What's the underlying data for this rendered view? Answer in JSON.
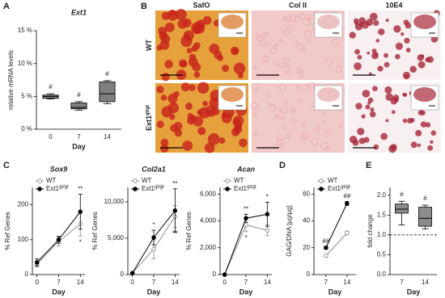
{
  "chart_data": [
    {
      "type": "box",
      "panel_label": "A",
      "title": "Ext1",
      "y_label": "relative mRNA levels",
      "x_label": "Day",
      "categories": [
        "0",
        "7",
        "14"
      ],
      "boxes": [
        {
          "min": 4.6,
          "q1": 4.7,
          "median": 5.0,
          "q3": 5.2,
          "max": 5.4
        },
        {
          "min": 2.9,
          "q1": 3.1,
          "median": 3.3,
          "q3": 4.0,
          "max": 4.2
        },
        {
          "min": 3.9,
          "q1": 4.2,
          "median": 5.4,
          "q3": 7.2,
          "max": 7.4
        }
      ],
      "annotations": [
        "#",
        "#",
        "#"
      ],
      "color": "#7f7f7f",
      "ylim": [
        0,
        15
      ],
      "yticks": [
        {
          "value": 0,
          "label": "0 %"
        },
        {
          "value": 5,
          "label": "5 %"
        },
        {
          "value": 10,
          "label": "10 %"
        },
        {
          "value": 15,
          "label": "15 %"
        }
      ]
    },
    {
      "type": "line",
      "panel_label": "C",
      "title": "Sox9",
      "y_label": "% Ref Genes",
      "x_label": "Day",
      "x": [
        0,
        7,
        14
      ],
      "xlim": [
        -1.5,
        15.5
      ],
      "xticks": [
        0,
        7,
        14
      ],
      "ylim": [
        0,
        250
      ],
      "yticks": [
        0,
        100,
        200
      ],
      "legend": "upper left",
      "series": [
        {
          "name": "WT",
          "color": "#8c8c8c",
          "marker_fill": "#ffffff",
          "values": [
            30,
            95,
            145
          ],
          "errors": [
            8,
            12,
            35
          ],
          "annotations": [
            null,
            null,
            "*"
          ]
        },
        {
          "name": "Ext1",
          "name_sup": "gt/gt",
          "color": "#000000",
          "marker_fill": "#000000",
          "values": [
            35,
            100,
            180
          ],
          "errors": [
            10,
            10,
            50
          ],
          "annotations": [
            null,
            null,
            "**"
          ]
        }
      ]
    },
    {
      "type": "line",
      "title": "Col2a1",
      "y_label": "% Ref Genes",
      "x_label": "Day",
      "x": [
        0,
        7,
        14
      ],
      "xlim": [
        -1.5,
        15.5
      ],
      "xticks": [
        0,
        7,
        14
      ],
      "ylim": [
        0,
        12000
      ],
      "yticks": [
        0,
        {
          "value": 5000,
          "label": "5,000"
        },
        {
          "value": 10000,
          "label": "10,000"
        }
      ],
      "legend": "upper left",
      "series": [
        {
          "name": "WT",
          "color": "#8c8c8c",
          "marker_fill": "#ffffff",
          "values": [
            200,
            3500,
            8000
          ],
          "errors": [
            100,
            1300,
            1500
          ],
          "annotations": [
            null,
            null,
            "**"
          ]
        },
        {
          "name": "Ext1",
          "name_sup": "gt/gt",
          "color": "#000000",
          "marker_fill": "#000000",
          "values": [
            200,
            5100,
            8800
          ],
          "errors": [
            100,
            1000,
            3000
          ],
          "annotations": [
            null,
            "*",
            "**"
          ]
        }
      ]
    },
    {
      "type": "line",
      "title": "Acan",
      "y_label": "% Ref Genes",
      "x_label": "Day",
      "x": [
        0,
        7,
        14
      ],
      "xlim": [
        -1.5,
        15.5
      ],
      "xticks": [
        0,
        7,
        14
      ],
      "ylim": [
        0,
        6500
      ],
      "yticks": [
        0,
        {
          "value": 2000,
          "label": "2,000"
        },
        {
          "value": 4000,
          "label": "4,000"
        },
        {
          "value": 6000,
          "label": "6,000"
        }
      ],
      "legend": "upper left",
      "series": [
        {
          "name": "WT",
          "color": "#8c8c8c",
          "marker_fill": "#ffffff",
          "values": [
            0,
            3700,
            3300
          ],
          "errors": [
            null,
            500,
            400
          ],
          "annotations": [
            null,
            "*",
            null
          ]
        },
        {
          "name": "Ext1",
          "name_sup": "gt/gt",
          "color": "#000000",
          "marker_fill": "#000000",
          "values": [
            0,
            4200,
            4500
          ],
          "errors": [
            null,
            300,
            900
          ],
          "annotations": [
            null,
            "**",
            "*"
          ]
        }
      ]
    },
    {
      "type": "line",
      "panel_label": "D",
      "y_label": "GAG/DNA [µg/µg]",
      "x_label": "Day",
      "x": [
        7,
        14
      ],
      "xlim": [
        3,
        17
      ],
      "xticks": [
        7,
        14
      ],
      "ylim": [
        0,
        65
      ],
      "yticks": [
        0,
        20,
        40,
        60
      ],
      "legend": "upper left",
      "series": [
        {
          "name": "WT",
          "color": "#8c8c8c",
          "marker_fill": "#ffffff",
          "values": [
            14,
            31
          ],
          "errors": [
            1,
            1.5
          ],
          "annotations": [
            null,
            null
          ]
        },
        {
          "name": "Ext1",
          "name_sup": "gt/gt",
          "color": "#000000",
          "marker_fill": "#000000",
          "values": [
            20,
            53
          ],
          "errors": [
            1,
            1.5
          ],
          "annotations": [
            "##",
            "##"
          ]
        }
      ]
    },
    {
      "type": "box",
      "panel_label": "E",
      "y_label": "fold change",
      "x_label": "Day",
      "categories": [
        "7",
        "14"
      ],
      "boxes": [
        {
          "min": 1.25,
          "q1": 1.55,
          "median": 1.65,
          "q3": 1.78,
          "max": 1.85
        },
        {
          "min": 1.15,
          "q1": 1.22,
          "median": 1.42,
          "q3": 1.7,
          "max": 1.75
        }
      ],
      "annotations": [
        "#",
        "#"
      ],
      "color": "#8c8c8c",
      "reference_line": 1,
      "ylim": [
        0,
        2.2
      ],
      "yticks": [
        {
          "value": 0,
          "label": "0.0"
        },
        {
          "value": 0.5,
          "label": "0.5"
        },
        {
          "value": 1,
          "label": "1.0"
        },
        {
          "value": 1.5,
          "label": "1.5"
        },
        {
          "value": 2,
          "label": "2.0"
        }
      ]
    }
  ],
  "panel_b": {
    "panel_label": "B",
    "columns": [
      "SafO",
      "Col II",
      "10E4"
    ],
    "rows": [
      {
        "name": "WT"
      },
      {
        "name": "Ext1",
        "name_sup": "gt/gt"
      }
    ]
  }
}
